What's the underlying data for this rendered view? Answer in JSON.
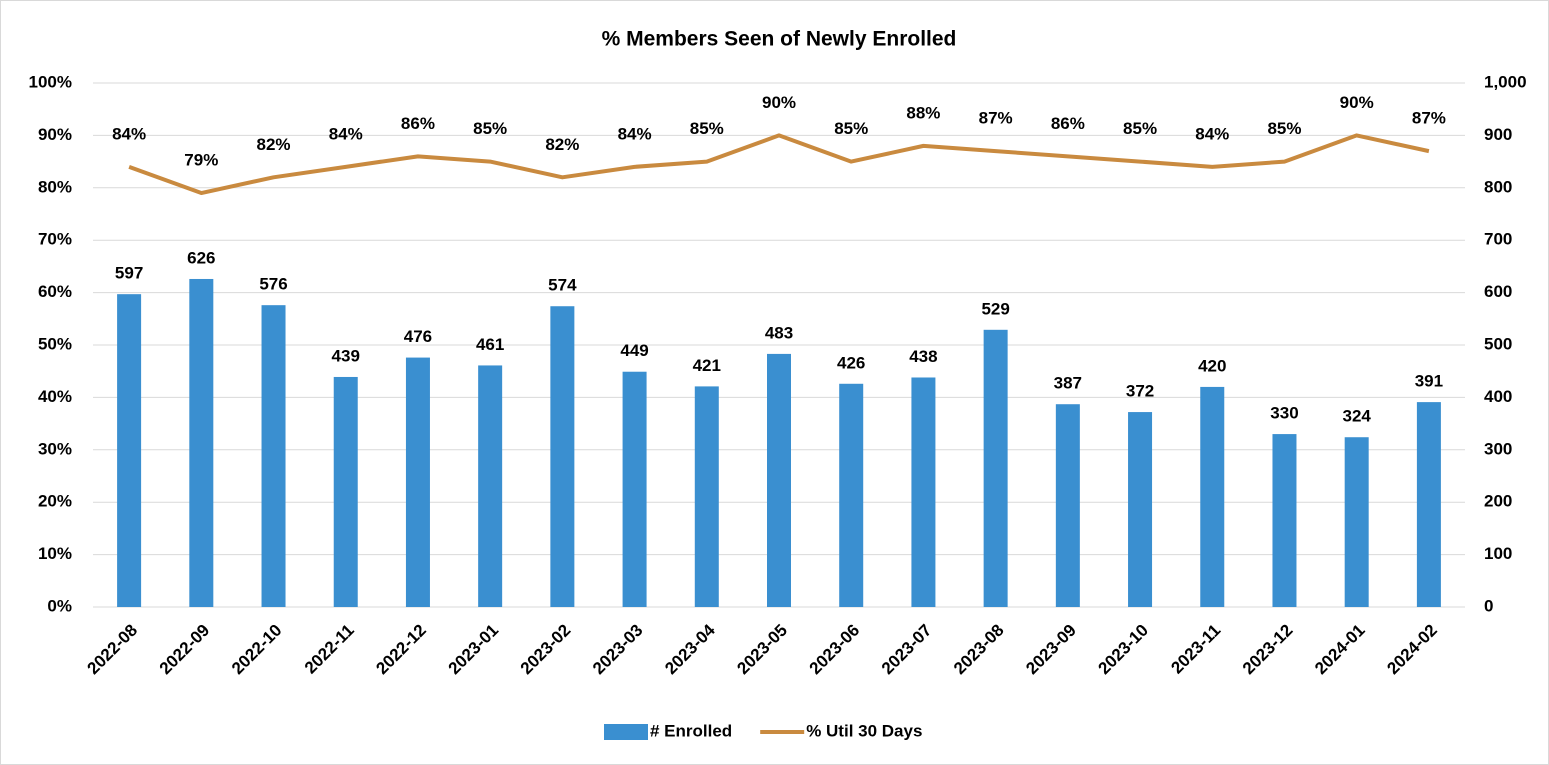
{
  "chart_data": {
    "type": "combo",
    "title": "% Members Seen of Newly Enrolled",
    "categories": [
      "2022-08",
      "2022-09",
      "2022-10",
      "2022-11",
      "2022-12",
      "2023-01",
      "2023-02",
      "2023-03",
      "2023-04",
      "2023-05",
      "2023-06",
      "2023-07",
      "2023-08",
      "2023-09",
      "2023-10",
      "2023-11",
      "2023-12",
      "2024-01",
      "2024-02"
    ],
    "series": [
      {
        "name": "# Enrolled",
        "type": "bar",
        "axis": "y2",
        "color": "#3a8fd0",
        "values": [
          597,
          626,
          576,
          439,
          476,
          461,
          574,
          449,
          421,
          483,
          426,
          438,
          529,
          387,
          372,
          420,
          330,
          324,
          391
        ]
      },
      {
        "name": "% Util 30 Days",
        "type": "line",
        "axis": "y",
        "color": "#c98a3f",
        "values": [
          84,
          79,
          82,
          84,
          86,
          85,
          82,
          84,
          85,
          90,
          85,
          88,
          87,
          86,
          85,
          84,
          85,
          90,
          87
        ],
        "value_labels": [
          "84%",
          "79%",
          "82%",
          "84%",
          "86%",
          "85%",
          "82%",
          "84%",
          "85%",
          "90%",
          "85%",
          "88%",
          "87%",
          "86%",
          "85%",
          "84%",
          "85%",
          "90%",
          "87%"
        ]
      }
    ],
    "ylim": [
      0,
      100
    ],
    "yticks": [
      {
        "value": 0,
        "label": "0%"
      },
      {
        "value": 10,
        "label": "10%"
      },
      {
        "value": 20,
        "label": "20%"
      },
      {
        "value": 30,
        "label": "30%"
      },
      {
        "value": 40,
        "label": "40%"
      },
      {
        "value": 50,
        "label": "50%"
      },
      {
        "value": 60,
        "label": "60%"
      },
      {
        "value": 70,
        "label": "70%"
      },
      {
        "value": 80,
        "label": "80%"
      },
      {
        "value": 90,
        "label": "90%"
      },
      {
        "value": 100,
        "label": "100%"
      }
    ],
    "y2lim": [
      0,
      1000
    ],
    "y2ticks": [
      0,
      100,
      200,
      300,
      400,
      500,
      600,
      700,
      800,
      900,
      {
        "value": 1000,
        "label": "1,000"
      }
    ],
    "grid": true,
    "legend": "bottom"
  }
}
